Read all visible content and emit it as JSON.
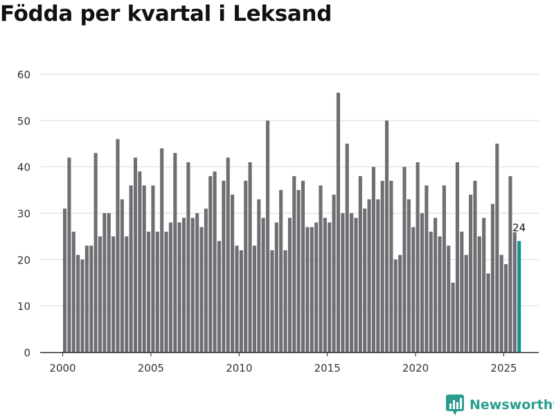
{
  "title": "Födda per kvartal i Leksand",
  "brand": {
    "name": "Newsworthy",
    "icon": "bar-chart-logo-icon"
  },
  "colors": {
    "bar": "#6e6e73",
    "highlight": "#10958c",
    "grid": "#d9d9d9",
    "axis": "#222222",
    "text": "#333333"
  },
  "chart_data": {
    "type": "bar",
    "title": "Födda per kvartal i Leksand",
    "xlabel": "",
    "ylabel": "",
    "ylim": [
      0,
      60
    ],
    "yticks": [
      0,
      10,
      20,
      30,
      40,
      50,
      60
    ],
    "xticks": [
      "2000",
      "2005",
      "2010",
      "2015",
      "2020",
      "2025"
    ],
    "x_start_year": 2000,
    "periods_per_year": 4,
    "values": [
      31,
      42,
      26,
      21,
      20,
      23,
      23,
      43,
      25,
      30,
      30,
      25,
      46,
      33,
      25,
      36,
      42,
      39,
      36,
      26,
      36,
      26,
      44,
      26,
      28,
      43,
      28,
      29,
      41,
      29,
      30,
      27,
      31,
      38,
      39,
      24,
      37,
      42,
      34,
      23,
      22,
      37,
      41,
      23,
      33,
      29,
      50,
      22,
      28,
      35,
      22,
      29,
      38,
      35,
      37,
      27,
      27,
      28,
      36,
      29,
      28,
      34,
      56,
      30,
      45,
      30,
      29,
      38,
      31,
      33,
      40,
      33,
      37,
      50,
      37,
      20,
      21,
      40,
      33,
      27,
      41,
      30,
      36,
      26,
      29,
      25,
      36,
      23,
      15,
      41,
      26,
      21,
      34,
      37,
      25,
      29,
      17,
      32,
      45,
      21,
      19,
      38,
      26,
      24
    ],
    "highlight_index": 103,
    "highlight_label": "24",
    "grid": true
  }
}
